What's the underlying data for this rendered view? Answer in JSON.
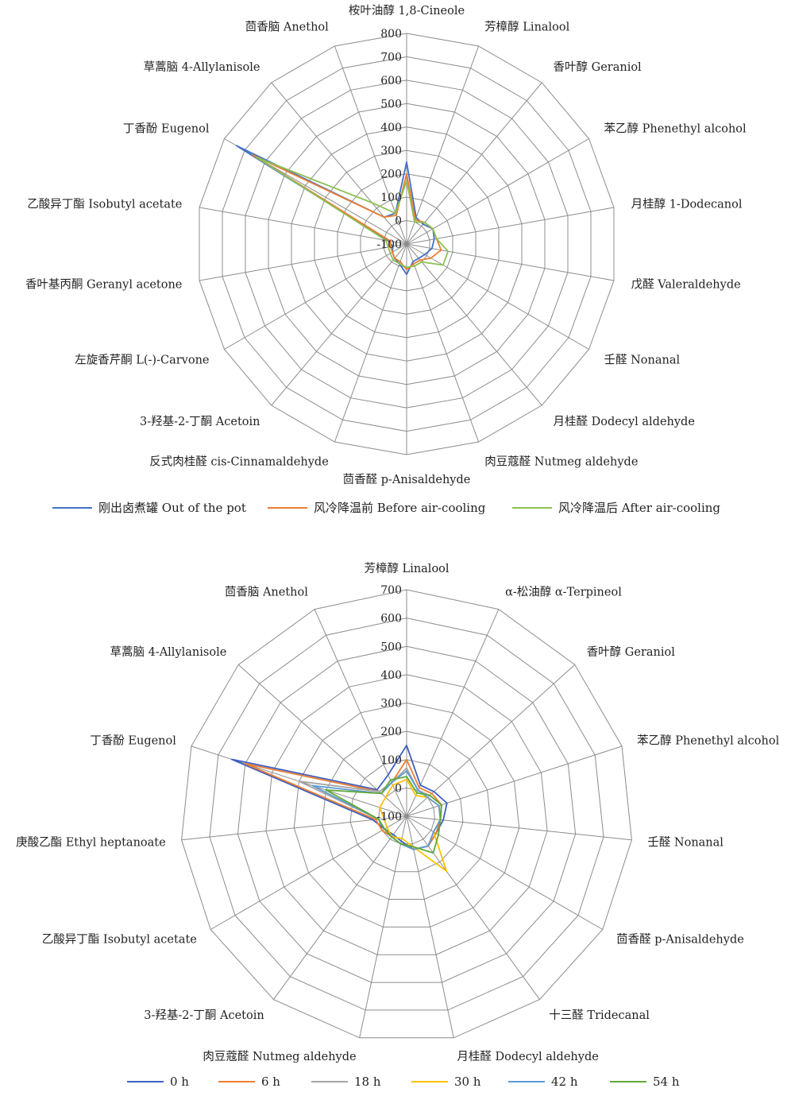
{
  "chart_data": [
    {
      "type": "radar",
      "rlim": [
        -100,
        800
      ],
      "rticks": [
        "-100",
        "0",
        "100",
        "200",
        "300",
        "400",
        "500",
        "600",
        "700",
        "800"
      ],
      "categories": [
        "桉叶油醇 1,8-Cineole",
        "芳樟醇 Linalool",
        "香叶醇 Geraniol",
        "苯乙醇 Phenethyl alcohol",
        "月桂醇 1-Dodecanol",
        "戊醛 Valeraldehyde",
        "壬醛 Nonanal",
        "月桂醛 Dodecyl aldehyde",
        "肉豆蔻醛 Nutmeg aldehyde",
        "茴香醛 p-Anisaldehyde",
        "反式肉桂醛 cis-Cinnamaldehyde",
        "3-羟基-2-丁酮 Acetoin",
        "左旋香芹酮 L(-)-Carvone",
        "香叶基丙酮 Geranyl acetone",
        "乙酸异丁酯 Isobutyl acetate",
        "丁香酚 Eugenol",
        "草蒿脑 4-Allylanisole",
        "茴香脑 Anethol"
      ],
      "series": [
        {
          "name": "刚出卤煮罐 Out of the pot",
          "color": "#4472c4",
          "values": [
            250,
            20,
            10,
            30,
            20,
            10,
            -10,
            -20,
            -20,
            30,
            -10,
            -20,
            -30,
            -40,
            -20,
            740,
            50,
            40
          ]
        },
        {
          "name": "风冷降温前 Before air-cooling",
          "color": "#ed7d31",
          "values": [
            200,
            10,
            20,
            30,
            30,
            50,
            20,
            -10,
            -10,
            10,
            -20,
            -20,
            -30,
            -30,
            -30,
            660,
            50,
            30
          ]
        },
        {
          "name": "风冷降温后 After air-cooling",
          "color": "#8cc152",
          "values": [
            170,
            0,
            20,
            30,
            30,
            80,
            80,
            0,
            0,
            0,
            -10,
            -10,
            -20,
            -20,
            -10,
            640,
            130,
            40
          ]
        }
      ]
    },
    {
      "type": "radar",
      "rlim": [
        -100,
        700
      ],
      "rticks": [
        "-100",
        "0",
        "100",
        "200",
        "300",
        "400",
        "500",
        "600",
        "700"
      ],
      "categories": [
        "芳樟醇 Linalool",
        "α-松油醇 α-Terpineol",
        "香叶醇 Geraniol",
        "苯乙醇 Phenethyl alcohol",
        "壬醛 Nonanal",
        "茴香醛 p-Anisaldehyde",
        "十三醛 Tridecanal",
        "月桂醛 Dodecyl aldehyde",
        "肉豆蔻醛 Nutmeg aldehyde",
        "3-羟基-2-丁酮 Acetoin",
        "乙酸异丁酯 Isobutyl acetate",
        "庚酸乙酯 Ethyl heptanoate",
        "丁香酚 Eugenol",
        "草蒿脑 4-Allylanisole",
        "茴香脑 Anethol"
      ],
      "series": [
        {
          "name": "0 h",
          "color": "#3f5fbf",
          "values": [
            150,
            20,
            30,
            50,
            30,
            20,
            30,
            20,
            -10,
            -20,
            -10,
            20,
            550,
            40,
            60
          ]
        },
        {
          "name": "6 h",
          "color": "#ed7d31",
          "values": [
            100,
            10,
            20,
            30,
            20,
            20,
            30,
            20,
            0,
            -10,
            0,
            10,
            500,
            30,
            30
          ]
        },
        {
          "name": "18 h",
          "color": "#a5a5a5",
          "values": [
            70,
            0,
            10,
            30,
            20,
            10,
            30,
            20,
            0,
            -10,
            -10,
            0,
            300,
            30,
            30
          ]
        },
        {
          "name": "30 h",
          "color": "#ffc000",
          "values": [
            30,
            -20,
            0,
            20,
            20,
            10,
            140,
            10,
            -20,
            -10,
            -20,
            -20,
            0,
            0,
            20
          ]
        },
        {
          "name": "42 h",
          "color": "#5b9bd5",
          "values": [
            60,
            0,
            0,
            20,
            20,
            10,
            30,
            20,
            0,
            -10,
            -10,
            0,
            250,
            20,
            30
          ]
        },
        {
          "name": "54 h",
          "color": "#5fa832",
          "values": [
            40,
            -10,
            10,
            30,
            20,
            30,
            60,
            10,
            0,
            -10,
            -10,
            0,
            200,
            20,
            40
          ]
        }
      ]
    }
  ]
}
